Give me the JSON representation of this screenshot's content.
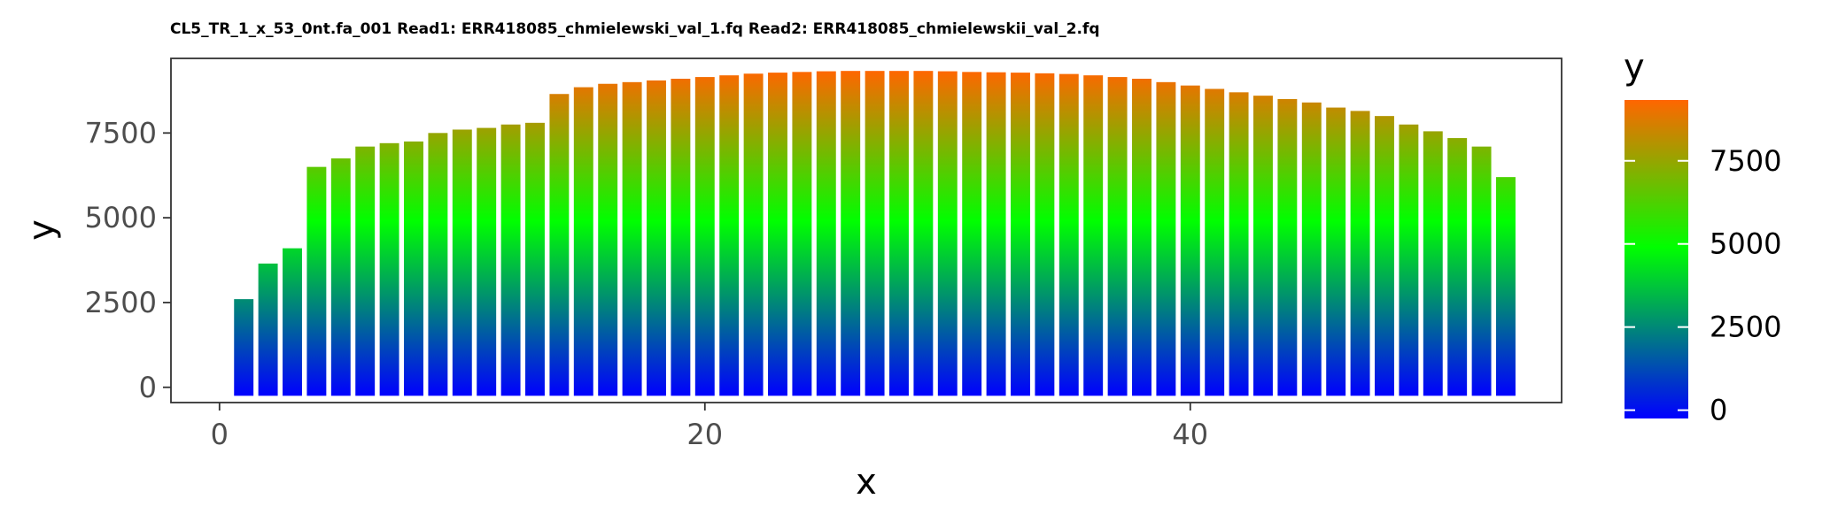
{
  "chart_data": {
    "type": "bar",
    "title": "CL5_TR_1_x_53_0nt.fa_001 Read1: ERR418085_chmielewski_val_1.fq Read2: ERR418085_chmielewskii_val_2.fq",
    "xlabel": "x",
    "ylabel": "y",
    "xlim": [
      -2,
      55.3
    ],
    "ylim": [
      -450,
      9700
    ],
    "x_ticks": [
      0,
      20,
      40
    ],
    "y_ticks": [
      0,
      2500,
      5000,
      7500
    ],
    "x_tick_labels": [
      "0",
      "20",
      "40"
    ],
    "y_tick_labels": [
      "0",
      "2500",
      "5000",
      "7500"
    ],
    "bar_width": 0.8,
    "bar_baseline": -250,
    "x": [
      1,
      2,
      3,
      4,
      5,
      6,
      7,
      8,
      9,
      10,
      11,
      12,
      13,
      14,
      15,
      16,
      17,
      18,
      19,
      20,
      21,
      22,
      23,
      24,
      25,
      26,
      27,
      28,
      29,
      30,
      31,
      32,
      33,
      34,
      35,
      36,
      37,
      38,
      39,
      40,
      41,
      42,
      43,
      44,
      45,
      46,
      47,
      48,
      49,
      50,
      51,
      52,
      53
    ],
    "values": [
      2600,
      3650,
      4100,
      6500,
      6750,
      7100,
      7200,
      7250,
      7500,
      7600,
      7650,
      7750,
      7800,
      8650,
      8850,
      8950,
      9000,
      9050,
      9100,
      9150,
      9200,
      9250,
      9280,
      9300,
      9320,
      9330,
      9330,
      9330,
      9330,
      9320,
      9300,
      9290,
      9280,
      9260,
      9240,
      9200,
      9150,
      9100,
      9000,
      8900,
      8800,
      8700,
      8600,
      8500,
      8400,
      8250,
      8150,
      8000,
      7750,
      7550,
      7350,
      7100,
      6200
    ],
    "legend": {
      "title": "y",
      "position": "right",
      "ticks": [
        0,
        2500,
        5000,
        7500
      ],
      "tick_labels": [
        "0",
        "2500",
        "5000",
        "7500"
      ],
      "range": [
        -250,
        9330
      ]
    },
    "colors": {
      "low": "#0000FF",
      "mid": "#00FF00",
      "high": "#FF6600",
      "mid_value": 4900
    }
  }
}
